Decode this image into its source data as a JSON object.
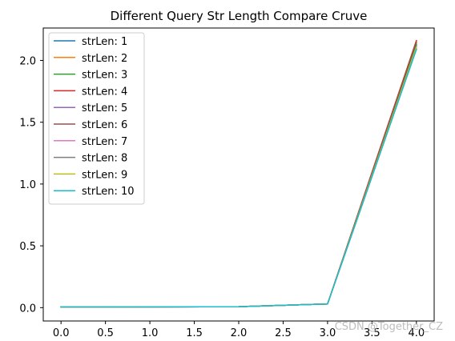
{
  "chart_data": {
    "type": "line",
    "title": "Different Query Str Length Compare Cruve",
    "xlabel": "",
    "ylabel": "",
    "x": [
      0,
      1,
      2,
      3,
      4
    ],
    "xlim": [
      -0.2,
      4.2
    ],
    "ylim": [
      -0.108,
      2.262
    ],
    "xticks": [
      0.0,
      0.5,
      1.0,
      1.5,
      2.0,
      2.5,
      3.0,
      3.5,
      4.0
    ],
    "xtick_labels": [
      "0.0",
      "0.5",
      "1.0",
      "1.5",
      "2.0",
      "2.5",
      "3.0",
      "3.5",
      "4.0"
    ],
    "yticks": [
      0.0,
      0.5,
      1.0,
      1.5,
      2.0
    ],
    "ytick_labels": [
      "0.0",
      "0.5",
      "1.0",
      "1.5",
      "2.0"
    ],
    "grid": false,
    "legend_position": "upper-left",
    "series": [
      {
        "name": "strLen: 1",
        "color": "#1f77b4",
        "values": [
          0.005,
          0.006,
          0.008,
          0.03,
          2.12
        ]
      },
      {
        "name": "strLen: 2",
        "color": "#ff7f0e",
        "values": [
          0.005,
          0.006,
          0.008,
          0.03,
          2.14
        ]
      },
      {
        "name": "strLen: 3",
        "color": "#2ca02c",
        "values": [
          0.005,
          0.006,
          0.008,
          0.03,
          2.13
        ]
      },
      {
        "name": "strLen: 4",
        "color": "#d62728",
        "values": [
          0.005,
          0.006,
          0.008,
          0.03,
          2.16
        ]
      },
      {
        "name": "strLen: 5",
        "color": "#9467bd",
        "values": [
          0.005,
          0.006,
          0.008,
          0.03,
          2.11
        ]
      },
      {
        "name": "strLen: 6",
        "color": "#8c564b",
        "values": [
          0.005,
          0.006,
          0.008,
          0.03,
          2.15
        ]
      },
      {
        "name": "strLen: 7",
        "color": "#e377c2",
        "values": [
          0.005,
          0.006,
          0.008,
          0.03,
          2.1
        ]
      },
      {
        "name": "strLen: 8",
        "color": "#7f7f7f",
        "values": [
          0.005,
          0.006,
          0.008,
          0.03,
          2.09
        ]
      },
      {
        "name": "strLen: 9",
        "color": "#bcbd22",
        "values": [
          0.005,
          0.006,
          0.008,
          0.03,
          2.11
        ]
      },
      {
        "name": "strLen: 10",
        "color": "#17becf",
        "values": [
          0.005,
          0.006,
          0.008,
          0.03,
          2.09
        ]
      }
    ]
  },
  "watermark": "CSDN @Together_CZ"
}
